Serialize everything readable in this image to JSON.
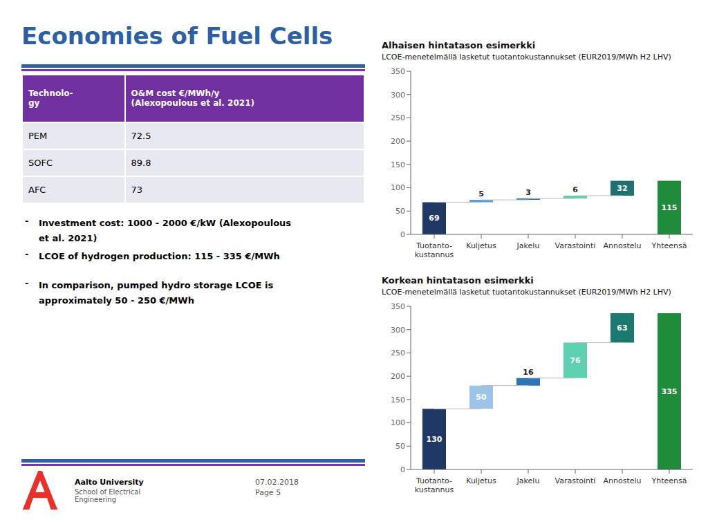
{
  "title": "Economies of Fuel Cells",
  "table": {
    "col_headers": [
      "Technolo-\ngy",
      "O&M cost €/MWh/y\n(Alexopoulous et al. 2021)"
    ],
    "rows": [
      [
        "PEM",
        "72.5"
      ],
      [
        "SOFC",
        "89.8"
      ],
      [
        "AFC",
        "73"
      ]
    ]
  },
  "annotations": [
    [
      "Investment cost: 1000 - 2000 €/kW (Alexopoulous",
      "et al. 2021)"
    ],
    [
      "LCOE of hydrogen production: 115 - 335 €/MWh"
    ],
    [
      "In comparison, pumped hydro storage LCOE is",
      "approximately 50 - 250 €/MWh"
    ]
  ],
  "footer": [
    "Aalto University",
    "School of Electrical",
    "Engineering",
    "07.02.2018",
    "Page 5"
  ],
  "chart_data": [
    {
      "type": "waterfall",
      "title": "Alhaisen hintatason esimerkki",
      "subtitle": "LCOE-menetelmällä lasketut tuotantokustannukset (EUR2019/MWh H2 LHV)",
      "categories": [
        "Tuotanto-\nkustannus",
        "Kuljetus",
        "Jakelu",
        "Varastointi",
        "Annostelu",
        "Yhteensä"
      ],
      "values": [
        69,
        5,
        3,
        6,
        32,
        115
      ],
      "colors": [
        "#1F3864",
        "#5B9BD5",
        "#2E75B6",
        "#5ECFB0",
        "#1F7070",
        "#1F8C3B"
      ],
      "ylim": [
        0,
        350
      ],
      "yticks": [
        0,
        50,
        100,
        150,
        200,
        250,
        300,
        350
      ],
      "grid": false,
      "data_labels": true
    },
    {
      "type": "waterfall",
      "title": "Korkean hintatason esimerkki",
      "subtitle": "LCOE-menetelmällä lasketut tuotantokustannukset (EUR2019/MWh H2 LHV)",
      "categories": [
        "Tuotanto-\nkustannus",
        "Kuljetus",
        "Jakelu",
        "Varastointi",
        "Annostelu",
        "Yhteensä"
      ],
      "values": [
        130,
        50,
        16,
        76,
        63,
        335
      ],
      "colors": [
        "#1F3864",
        "#9DC3E6",
        "#2E75B6",
        "#5ECFB0",
        "#1A7A6E",
        "#1F8C3B"
      ],
      "ylim": [
        0,
        350
      ],
      "yticks": [
        0,
        50,
        100,
        150,
        200,
        250,
        300,
        350
      ],
      "grid": false,
      "data_labels": true
    }
  ]
}
